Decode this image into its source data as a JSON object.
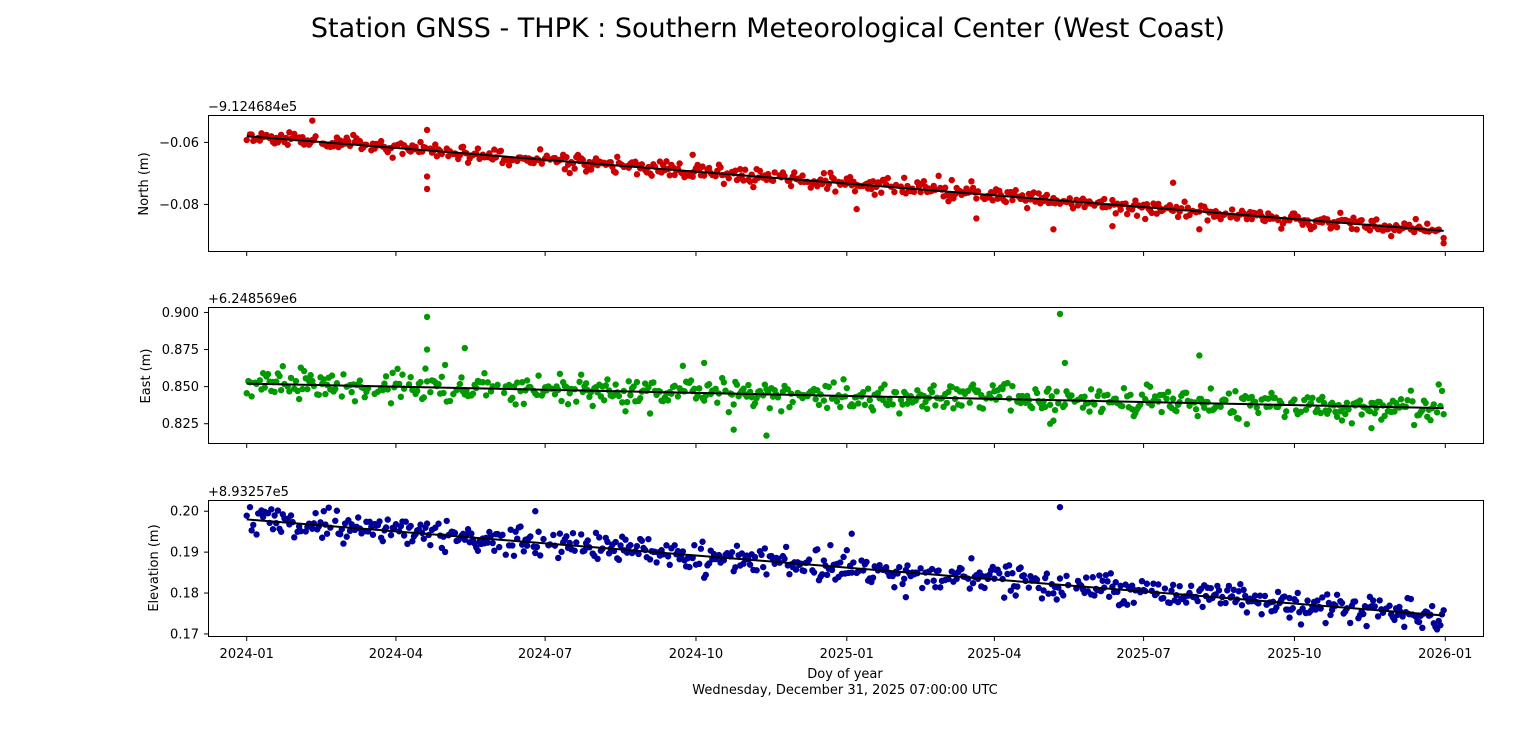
{
  "figure": {
    "title": "Station GNSS - THPK : Southern Meteorological Center (West Coast)",
    "xlabel": "Doy of year",
    "xlabel_date": "Wednesday, December 31, 2025 07:00:00 UTC"
  },
  "chart_data": [
    {
      "type": "scatter",
      "name": "north",
      "ylabel": "North (m)",
      "offset_label": "−9.124684e5",
      "color": "#cc0000",
      "ylim": [
        -0.095,
        -0.0515
      ],
      "yticks": [
        -0.06,
        -0.08
      ],
      "ytick_labels": [
        "−0.06",
        "−0.08"
      ],
      "x_range": [
        "2024-01-01",
        "2025-12-31"
      ],
      "trend": {
        "start": -0.058,
        "end": -0.0885
      },
      "noise_sd": 0.0013,
      "seed": 11,
      "outliers": [
        {
          "date": "2024-02-10",
          "value": -0.053
        },
        {
          "date": "2024-04-20",
          "value": -0.056
        },
        {
          "date": "2024-04-20",
          "value": -0.071
        },
        {
          "date": "2024-04-20",
          "value": -0.075
        },
        {
          "date": "2024-09-29",
          "value": -0.064
        },
        {
          "date": "2025-01-07",
          "value": -0.0815
        },
        {
          "date": "2025-03-21",
          "value": -0.0845
        },
        {
          "date": "2025-05-07",
          "value": -0.088
        },
        {
          "date": "2025-06-12",
          "value": -0.087
        },
        {
          "date": "2025-07-19",
          "value": -0.073
        },
        {
          "date": "2025-08-04",
          "value": -0.088
        },
        {
          "date": "2025-12-31",
          "value": -0.0925
        }
      ]
    },
    {
      "type": "scatter",
      "name": "east",
      "ylabel": "East (m)",
      "offset_label": "+6.248569e6",
      "color": "#009900",
      "ylim": [
        0.812,
        0.903
      ],
      "yticks": [
        0.9,
        0.875,
        0.85,
        0.825
      ],
      "ytick_labels": [
        "0.900",
        "0.875",
        "0.850",
        "0.825"
      ],
      "x_range": [
        "2024-01-01",
        "2025-12-31"
      ],
      "trend": {
        "start": 0.852,
        "end": 0.8355
      },
      "noise_sd": 0.005,
      "seed": 23,
      "outliers": [
        {
          "date": "2024-04-20",
          "value": 0.897
        },
        {
          "date": "2024-04-20",
          "value": 0.875
        },
        {
          "date": "2024-05-13",
          "value": 0.876
        },
        {
          "date": "2024-09-23",
          "value": 0.864
        },
        {
          "date": "2024-10-06",
          "value": 0.866
        },
        {
          "date": "2024-10-24",
          "value": 0.821
        },
        {
          "date": "2024-11-13",
          "value": 0.817
        },
        {
          "date": "2025-05-05",
          "value": 0.825
        },
        {
          "date": "2025-05-11",
          "value": 0.899
        },
        {
          "date": "2025-05-14",
          "value": 0.866
        },
        {
          "date": "2025-08-04",
          "value": 0.871
        },
        {
          "date": "2025-11-17",
          "value": 0.822
        }
      ]
    },
    {
      "type": "scatter",
      "name": "elevation",
      "ylabel": "Elevation (m)",
      "offset_label": "+8.93257e5",
      "color": "#000099",
      "ylim": [
        0.1695,
        0.2025
      ],
      "yticks": [
        0.2,
        0.19,
        0.18,
        0.17
      ],
      "ytick_labels": [
        "0.20",
        "0.19",
        "0.18",
        "0.17"
      ],
      "x_range": [
        "2024-01-01",
        "2025-12-31"
      ],
      "trend": {
        "start": 0.198,
        "end": 0.1745
      },
      "noise_sd": 0.0017,
      "seed": 37,
      "outliers": [
        {
          "date": "2024-01-03",
          "value": 0.201
        },
        {
          "date": "2024-06-25",
          "value": 0.2
        },
        {
          "date": "2025-01-04",
          "value": 0.1945
        },
        {
          "date": "2025-02-06",
          "value": 0.179
        },
        {
          "date": "2025-05-11",
          "value": 0.201
        },
        {
          "date": "2025-09-28",
          "value": 0.174
        },
        {
          "date": "2025-12-18",
          "value": 0.1715
        }
      ]
    }
  ],
  "x_axis": {
    "ticks": [
      "2024-01-01",
      "2024-04-01",
      "2024-07-01",
      "2024-10-01",
      "2025-01-01",
      "2025-04-01",
      "2025-07-01",
      "2025-10-01",
      "2026-01-01"
    ],
    "tick_labels": [
      "2024-01",
      "2024-04",
      "2024-07",
      "2024-10",
      "2025-01",
      "2025-04",
      "2025-07",
      "2025-10",
      "2026-01"
    ]
  }
}
